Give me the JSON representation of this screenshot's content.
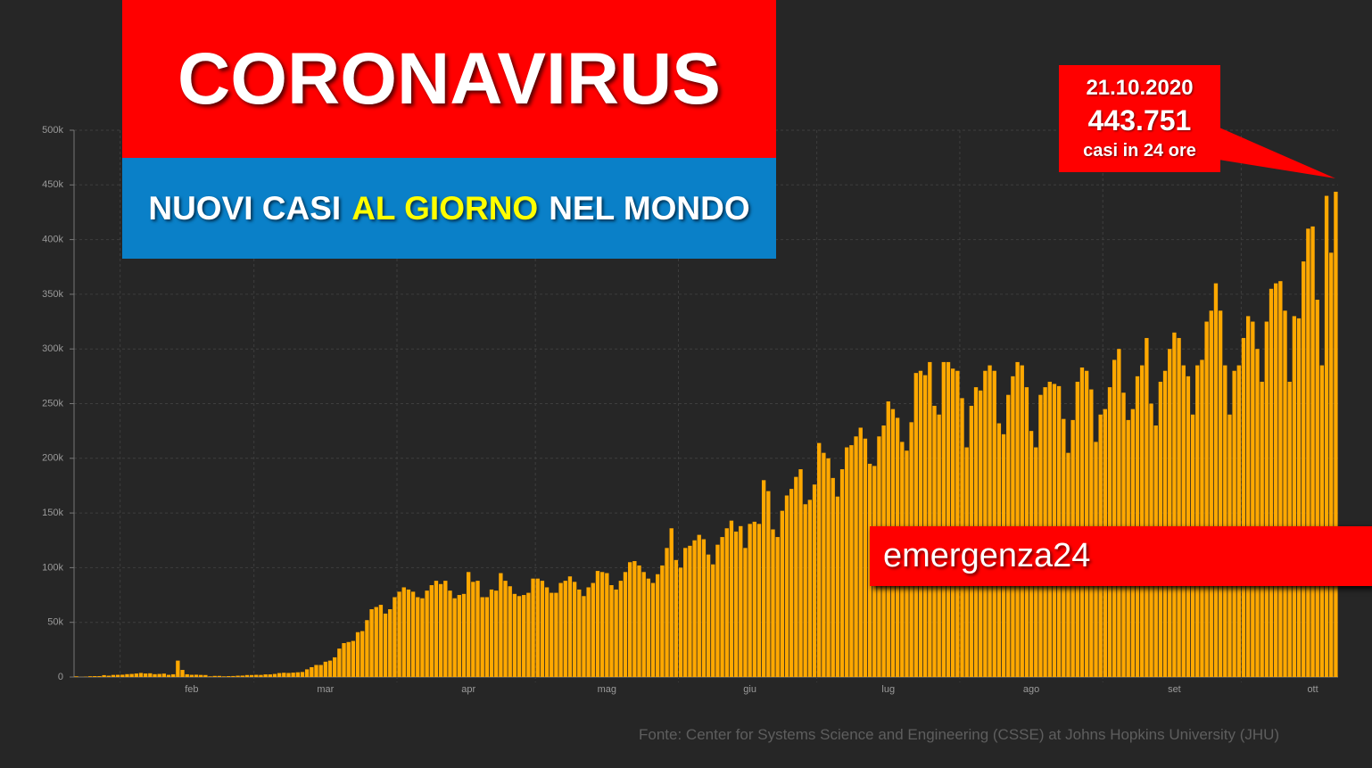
{
  "chart_data": {
    "type": "bar",
    "title": "CORONAVIRUS",
    "subtitle": {
      "before": "NUOVI CASI",
      "highlight": "AL GIORNO",
      "after": "NEL MONDO"
    },
    "annotation": {
      "date": "21.10.2020",
      "value": "443.751",
      "text": "casi in 24 ore"
    },
    "brand": "emergenza24",
    "source": "Fonte: Center for Systems Science and Engineering (CSSE) at Johns Hopkins University (JHU)",
    "color": "#ffa800",
    "grid": true,
    "ylim": [
      0,
      500000
    ],
    "yticks": [
      0,
      {
        "value": 50000,
        "label": "50k"
      },
      {
        "value": 100000,
        "label": "100k"
      },
      {
        "value": 150000,
        "label": "150k"
      },
      {
        "value": 200000,
        "label": "200k"
      },
      {
        "value": 250000,
        "label": "250k"
      },
      {
        "value": 300000,
        "label": "300k"
      },
      {
        "value": 350000,
        "label": "350k"
      },
      {
        "value": 400000,
        "label": "400k"
      },
      {
        "value": 450000,
        "label": "450k"
      },
      {
        "value": 500000,
        "label": "500k"
      }
    ],
    "categories": [
      null,
      null,
      null,
      null,
      null,
      null,
      null,
      null,
      null,
      null,
      null,
      null,
      null,
      null,
      null,
      null,
      null,
      null,
      null,
      null,
      null,
      null,
      null,
      null,
      null,
      "feb",
      null,
      null,
      null,
      null,
      null,
      null,
      null,
      null,
      null,
      null,
      null,
      null,
      null,
      null,
      null,
      null,
      null,
      null,
      null,
      null,
      null,
      null,
      null,
      null,
      null,
      null,
      null,
      null,
      "mar",
      null,
      null,
      null,
      null,
      null,
      null,
      null,
      null,
      null,
      null,
      null,
      null,
      null,
      null,
      null,
      null,
      null,
      null,
      null,
      null,
      null,
      null,
      null,
      null,
      null,
      null,
      null,
      null,
      null,
      null,
      "apr",
      null,
      null,
      null,
      null,
      null,
      null,
      null,
      null,
      null,
      null,
      null,
      null,
      null,
      null,
      null,
      null,
      null,
      null,
      null,
      null,
      null,
      null,
      null,
      null,
      null,
      null,
      null,
      null,
      null,
      "mag",
      null,
      null,
      null,
      null,
      null,
      null,
      null,
      null,
      null,
      null,
      null,
      null,
      null,
      null,
      null,
      null,
      null,
      null,
      null,
      null,
      null,
      null,
      null,
      null,
      null,
      null,
      null,
      null,
      null,
      null,
      "giu",
      null,
      null,
      null,
      null,
      null,
      null,
      null,
      null,
      null,
      null,
      null,
      null,
      null,
      null,
      null,
      null,
      null,
      null,
      null,
      null,
      null,
      null,
      null,
      null,
      null,
      null,
      null,
      null,
      null,
      "lug",
      null,
      null,
      null,
      null,
      null,
      null,
      null,
      null,
      null,
      null,
      null,
      null,
      null,
      null,
      null,
      null,
      null,
      null,
      null,
      null,
      null,
      null,
      null,
      null,
      null,
      null,
      null,
      null,
      null,
      null,
      "ago",
      null,
      null,
      null,
      null,
      null,
      null,
      null,
      null,
      null,
      null,
      null,
      null,
      null,
      null,
      null,
      null,
      null,
      null,
      null,
      null,
      null,
      null,
      null,
      null,
      null,
      null,
      null,
      null,
      null,
      null,
      "set",
      null,
      null,
      null,
      null,
      null,
      null,
      null,
      null,
      null,
      null,
      null,
      null,
      null,
      null,
      null,
      null,
      null,
      null,
      null,
      null,
      null,
      null,
      null,
      null,
      null,
      null,
      null,
      null,
      null,
      "ott",
      null,
      null,
      null,
      null,
      null
    ],
    "values": [
      600,
      100,
      300,
      700,
      800,
      800,
      1700,
      1200,
      1900,
      2000,
      2100,
      2600,
      2800,
      3200,
      3700,
      3200,
      3400,
      2600,
      2800,
      3100,
      2000,
      2500,
      15000,
      6500,
      2500,
      2000,
      2100,
      1900,
      1800,
      600,
      1000,
      1000,
      600,
      800,
      900,
      1200,
      1300,
      1800,
      1800,
      2000,
      1900,
      2400,
      2400,
      2800,
      3600,
      3900,
      3700,
      4000,
      4300,
      4600,
      7000,
      9000,
      11000,
      11000,
      14000,
      15000,
      18000,
      26000,
      31000,
      32000,
      33000,
      41000,
      42000,
      52000,
      62000,
      64000,
      66000,
      58000,
      62000,
      73000,
      78000,
      82000,
      80000,
      78000,
      73000,
      72000,
      79000,
      84000,
      88000,
      85000,
      88000,
      79000,
      72000,
      75000,
      76000,
      96000,
      87000,
      88000,
      73000,
      73000,
      80000,
      79000,
      95000,
      88000,
      83000,
      76000,
      74000,
      75000,
      77000,
      90000,
      90000,
      88000,
      82000,
      77000,
      77000,
      86000,
      88000,
      92000,
      87000,
      80000,
      74000,
      82000,
      86000,
      97000,
      96000,
      95000,
      84000,
      80000,
      88000,
      96000,
      105000,
      106000,
      102000,
      96000,
      90000,
      86000,
      94000,
      102000,
      118000,
      136000,
      107000,
      100000,
      118000,
      120000,
      125000,
      130000,
      126000,
      112000,
      103000,
      121000,
      128000,
      136000,
      143000,
      133000,
      138000,
      118000,
      140000,
      142000,
      140000,
      180000,
      170000,
      135000,
      128000,
      152000,
      166000,
      172000,
      183000,
      190000,
      158000,
      162000,
      176000,
      214000,
      205000,
      200000,
      182000,
      165000,
      190000,
      210000,
      212000,
      220000,
      228000,
      218000,
      195000,
      193000,
      220000,
      230000,
      252000,
      245000,
      237000,
      215000,
      207000,
      233000,
      278000,
      280000,
      276000,
      288000,
      248000,
      240000,
      288000,
      288000,
      282000,
      280000,
      255000,
      210000,
      248000,
      265000,
      262000,
      280000,
      285000,
      280000,
      232000,
      222000,
      258000,
      275000,
      288000,
      285000,
      265000,
      225000,
      210000,
      258000,
      265000,
      270000,
      268000,
      266000,
      236000,
      205000,
      235000,
      270000,
      283000,
      280000,
      263000,
      215000,
      240000,
      245000,
      265000,
      290000,
      300000,
      260000,
      235000,
      245000,
      275000,
      285000,
      310000,
      250000,
      230000,
      270000,
      280000,
      300000,
      315000,
      310000,
      285000,
      275000,
      240000,
      285000,
      290000,
      325000,
      335000,
      360000,
      335000,
      285000,
      240000,
      280000,
      285000,
      310000,
      330000,
      325000,
      300000,
      270000,
      325000,
      355000,
      360000,
      362000,
      335000,
      270000,
      330000,
      328000,
      380000,
      410000,
      412000,
      345000,
      285000,
      440000,
      388000,
      443751
    ]
  }
}
